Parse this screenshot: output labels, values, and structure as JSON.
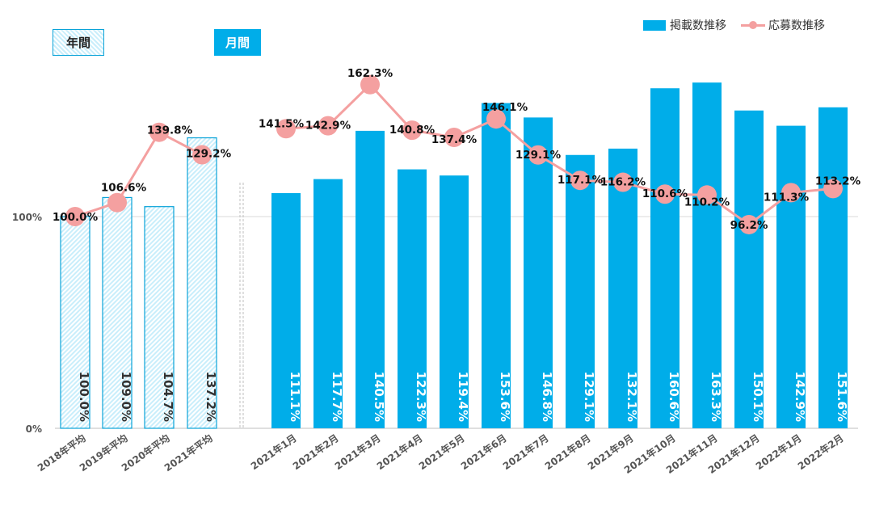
{
  "chart_data": {
    "type": "bar",
    "legend_position": "top-right",
    "legend": {
      "bar_label": "掲載数推移",
      "line_label": "応募数推移"
    },
    "tags": {
      "annual": "年間",
      "monthly": "月間"
    },
    "y_axis": {
      "ticks": [
        "0%",
        "100%"
      ],
      "ylim": [
        0,
        175
      ]
    },
    "annual": {
      "categories": [
        "2018年平均",
        "2019年平均",
        "2020年平均",
        "2021年平均"
      ],
      "bar_values": [
        100.0,
        109.0,
        104.7,
        137.2
      ],
      "bar_labels": [
        "100.0%",
        "109.0%",
        "104.7%",
        "137.2%"
      ],
      "line_values": [
        100.0,
        106.6,
        139.8,
        129.2
      ],
      "line_labels": [
        "100.0%",
        "106.6%",
        "139.8%",
        "129.2%"
      ]
    },
    "monthly": {
      "categories": [
        "2021年1月",
        "2021年2月",
        "2021年3月",
        "2021年4月",
        "2021年5月",
        "2021年6月",
        "2021年7月",
        "2021年8月",
        "2021年9月",
        "2021年10月",
        "2021年11月",
        "2021年12月",
        "2022年1月",
        "2022年2月"
      ],
      "bar_values": [
        111.1,
        117.7,
        140.5,
        122.3,
        119.4,
        153.6,
        146.8,
        129.1,
        132.1,
        160.6,
        163.3,
        150.1,
        142.9,
        151.6
      ],
      "bar_labels": [
        "111.1%",
        "117.7%",
        "140.5%",
        "122.3%",
        "119.4%",
        "153.6%",
        "146.8%",
        "129.1%",
        "132.1%",
        "160.6%",
        "163.3%",
        "150.1%",
        "142.9%",
        "151.6%"
      ],
      "line_values": [
        141.5,
        142.9,
        162.3,
        140.8,
        137.4,
        146.1,
        129.1,
        117.1,
        116.2,
        110.6,
        110.2,
        96.2,
        111.3,
        113.2
      ],
      "line_labels": [
        "141.5%",
        "142.9%",
        "162.3%",
        "140.8%",
        "137.4%",
        "146.1%",
        "129.1%",
        "117.1%",
        "116.2%",
        "110.6%",
        "110.2%",
        "96.2%",
        "111.3%",
        "113.2%"
      ]
    },
    "colors": {
      "bar": "#00ade9",
      "line": "#f4a0a0",
      "hatch_fill": "#c9eefb",
      "hatch_border": "#0aa3d8"
    }
  }
}
